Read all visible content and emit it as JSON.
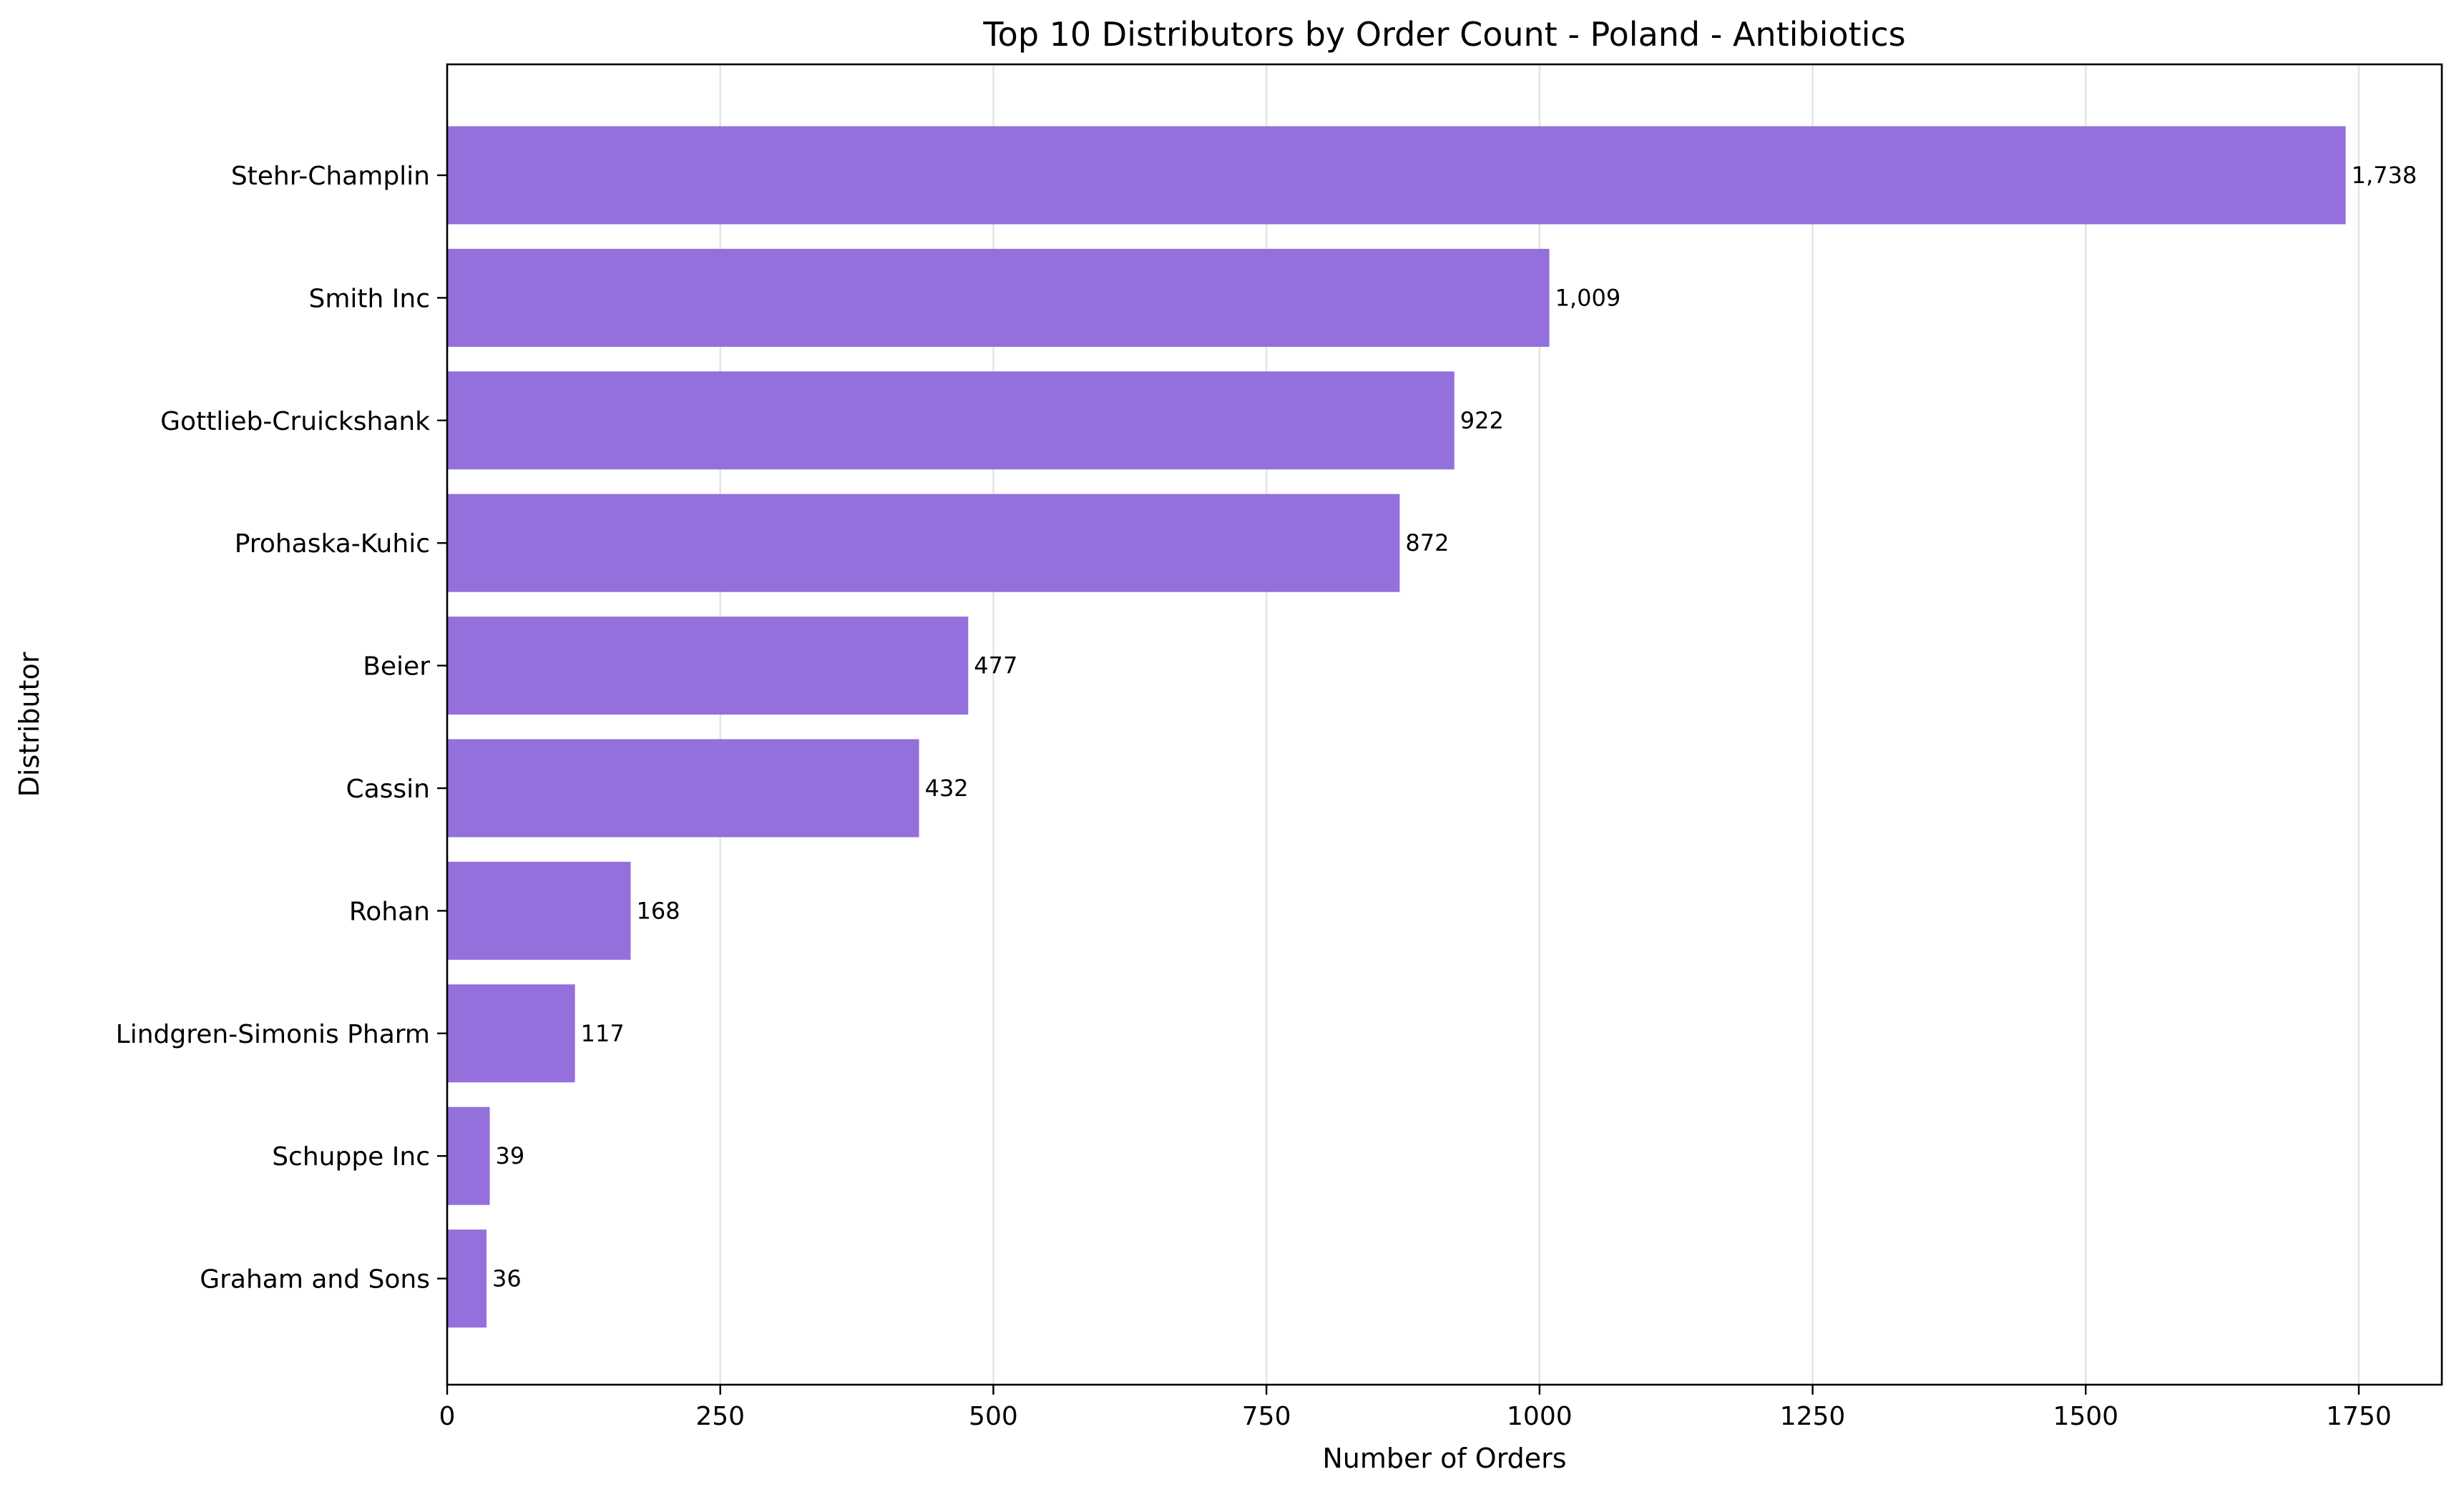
{
  "chart_data": {
    "type": "bar",
    "orientation": "horizontal",
    "title": "Top 10 Distributors by Order Count - Poland - Antibiotics",
    "xlabel": "Number of Orders",
    "ylabel": "Distributor",
    "categories": [
      "Stehr-Champlin",
      "Smith Inc",
      "Gottlieb-Cruickshank",
      "Prohaska-Kuhic",
      "Beier",
      "Cassin",
      "Rohan",
      "Lindgren-Simonis Pharm",
      "Schuppe Inc",
      "Graham and Sons"
    ],
    "values": [
      1738,
      1009,
      922,
      872,
      477,
      432,
      168,
      117,
      39,
      36
    ],
    "value_labels": [
      "1,738",
      "1,009",
      "922",
      "872",
      "477",
      "432",
      "168",
      "117",
      "39",
      "36"
    ],
    "xlim": [
      0,
      1826
    ],
    "xticks": [
      0,
      250,
      500,
      750,
      1000,
      1250,
      1500,
      1750
    ],
    "xtick_labels": [
      "0",
      "250",
      "500",
      "750",
      "1000",
      "1250",
      "1500",
      "1750"
    ],
    "grid": "vertical",
    "bar_color": "#9370DB"
  }
}
